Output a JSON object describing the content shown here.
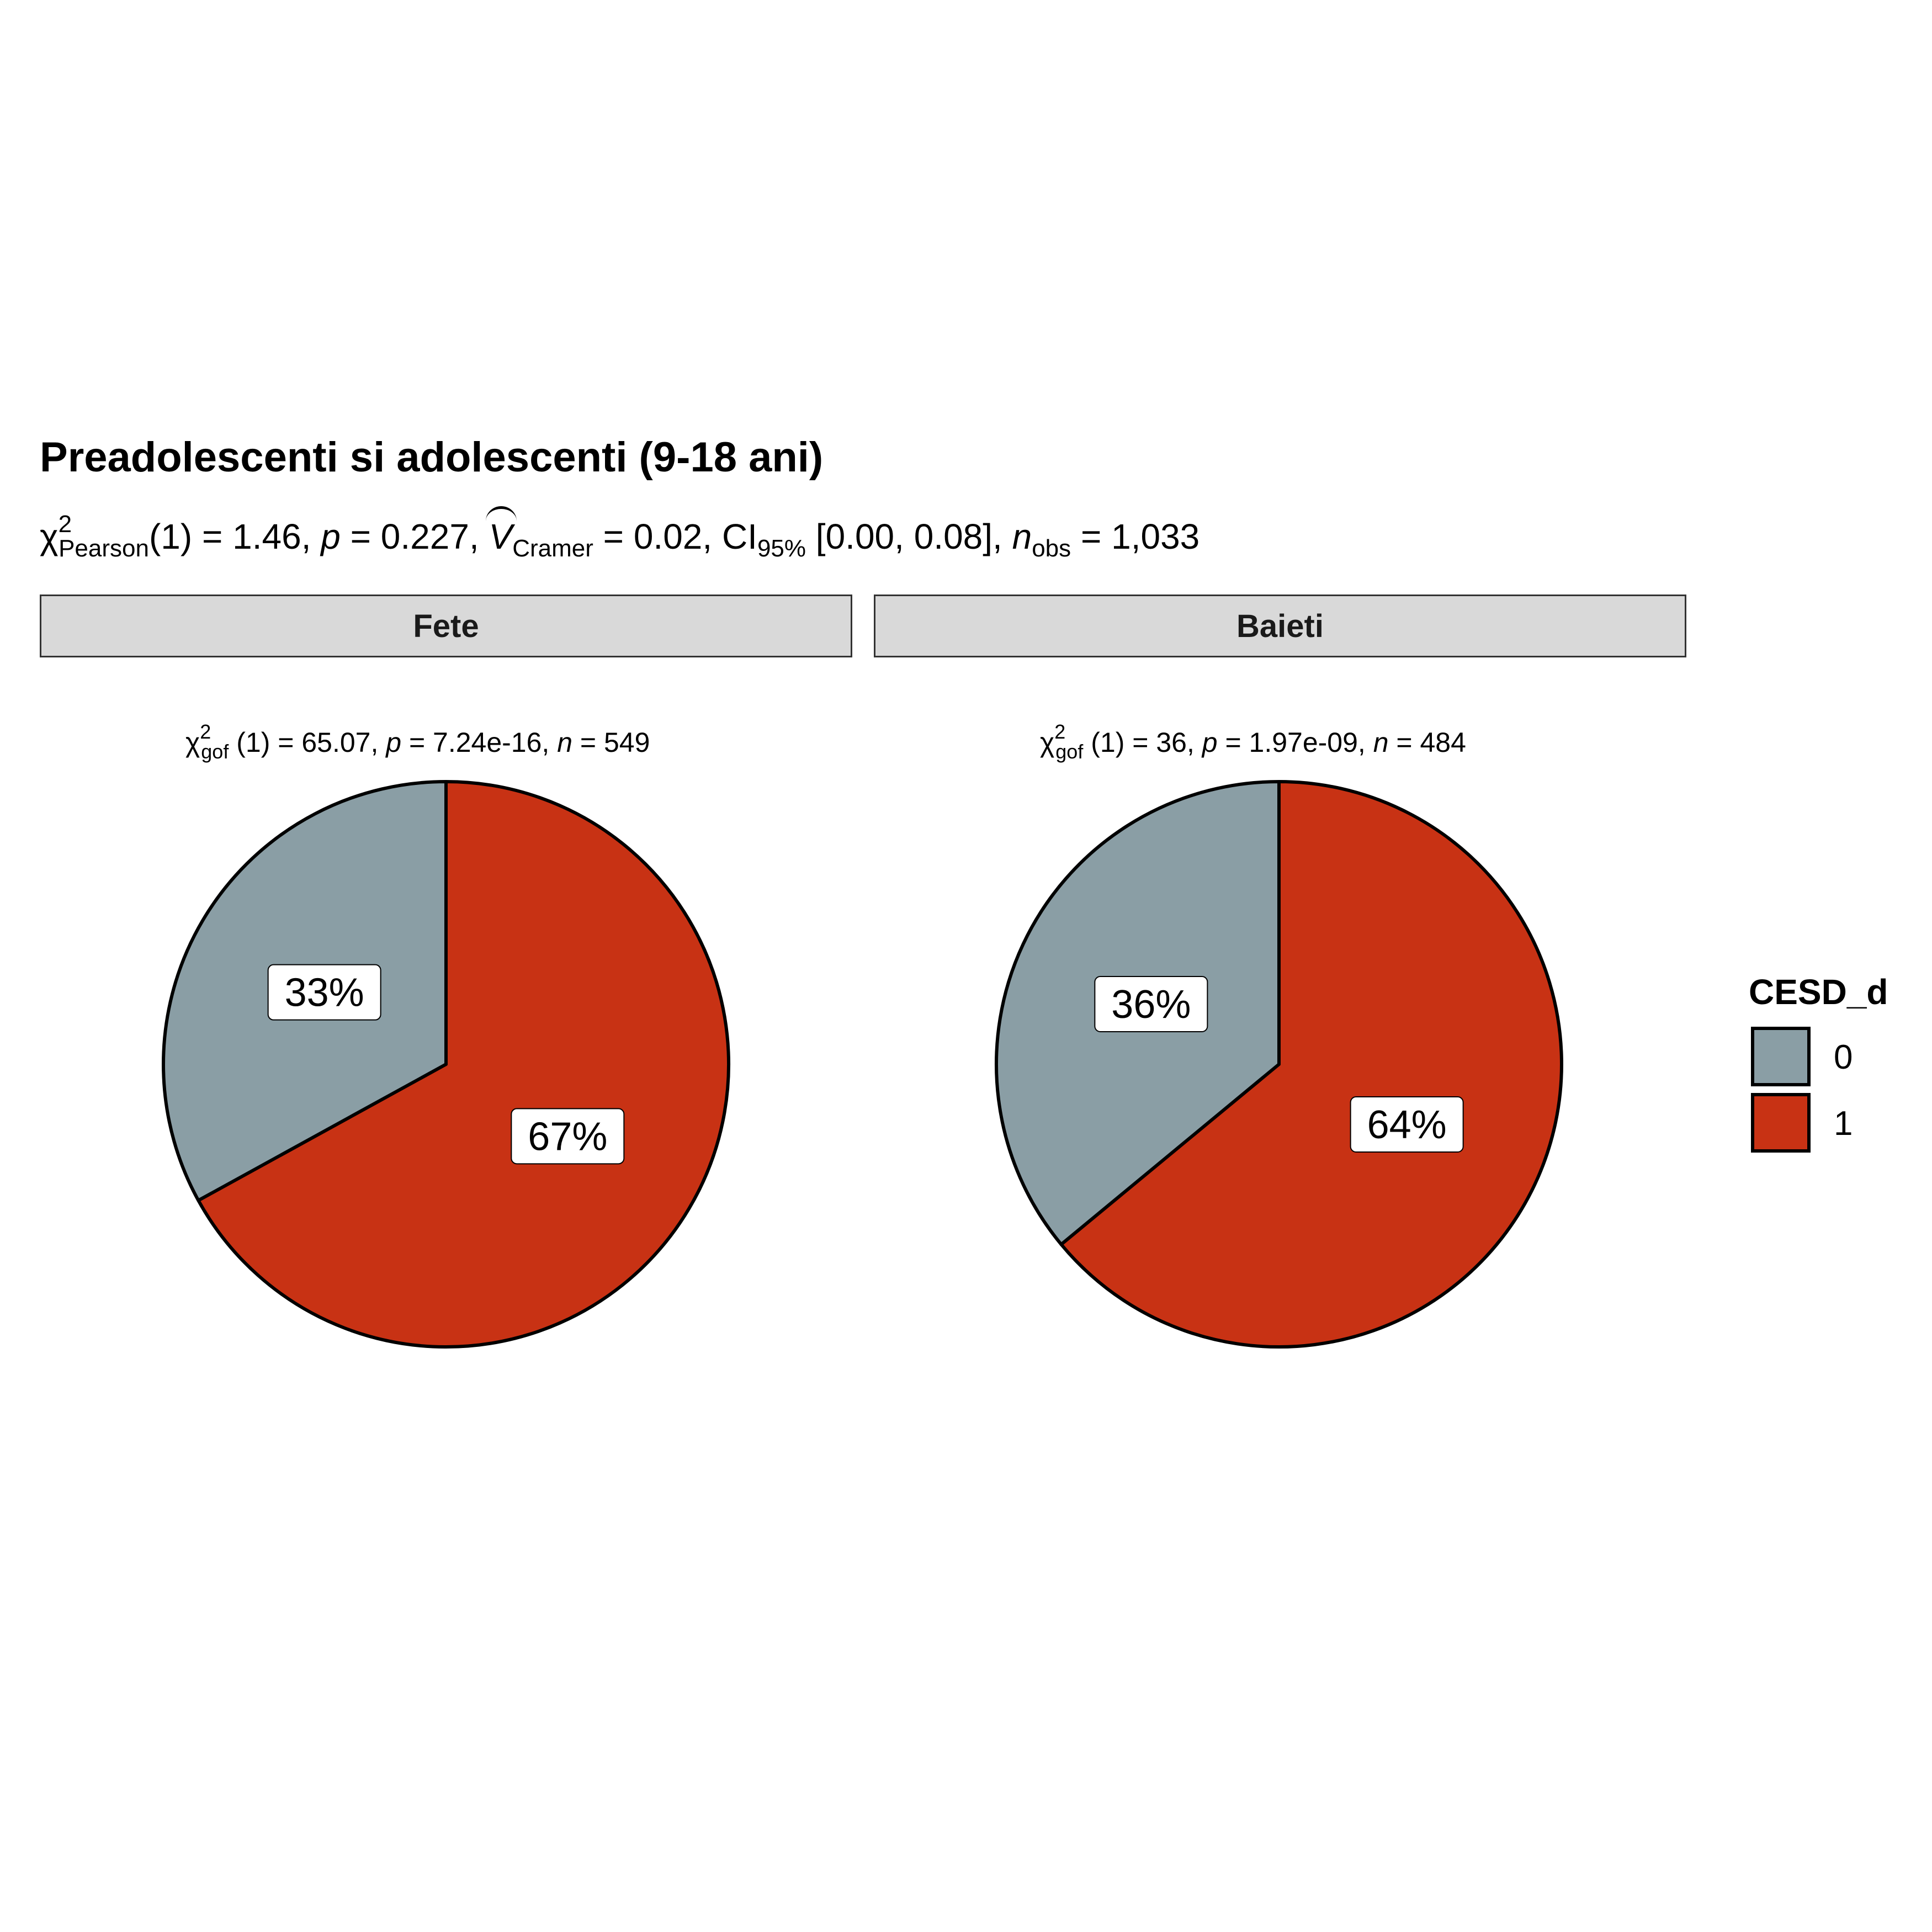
{
  "title": "Preadolescenti si adolescenti (9-18 ani)",
  "subtitle": {
    "chi_symbol": "χ",
    "chi_sup": "2",
    "chi_sub": "Pearson",
    "df_stat": "(1) = 1.46, ",
    "p_label": "p",
    "p_value": " = 0.227, ",
    "v_label": "V",
    "v_sub": "Cramer",
    "v_value": " = 0.02, CI",
    "ci_sub": "95%",
    "ci_value": " [0.00, 0.08], ",
    "n_label": "n",
    "n_sub": "obs",
    "n_value": " = 1,033"
  },
  "colors": {
    "level_0": "#8a9ea5",
    "level_1": "#c83214",
    "outline": "#000000",
    "strip_bg": "#d9d9d9"
  },
  "chart_data": {
    "type": "pie",
    "title": "Preadolescenti si adolescenti (9-18 ani)",
    "legend": {
      "title": "CESD_d",
      "placement": "right",
      "entries": [
        "0",
        "1"
      ]
    },
    "panels": [
      {
        "name": "Fete",
        "caption": {
          "chi": "χ",
          "sup": "2",
          "sub": "gof",
          "df": "(1) = 65.07,  ",
          "p_label": "p",
          "p_value": " = 7.24e-16,  ",
          "n_label": "n",
          "n_value": " = 549"
        },
        "slices": [
          {
            "level": "0",
            "value": 33,
            "label": "33%"
          },
          {
            "level": "1",
            "value": 67,
            "label": "67%"
          }
        ]
      },
      {
        "name": "Baieti",
        "caption": {
          "chi": "χ",
          "sup": "2",
          "sub": "gof",
          "df": "(1) = 36,  ",
          "p_label": "p",
          "p_value": " = 1.97e-09,  ",
          "n_label": "n",
          "n_value": " = 484"
        },
        "slices": [
          {
            "level": "0",
            "value": 36,
            "label": "36%"
          },
          {
            "level": "1",
            "value": 64,
            "label": "64%"
          }
        ]
      }
    ]
  }
}
